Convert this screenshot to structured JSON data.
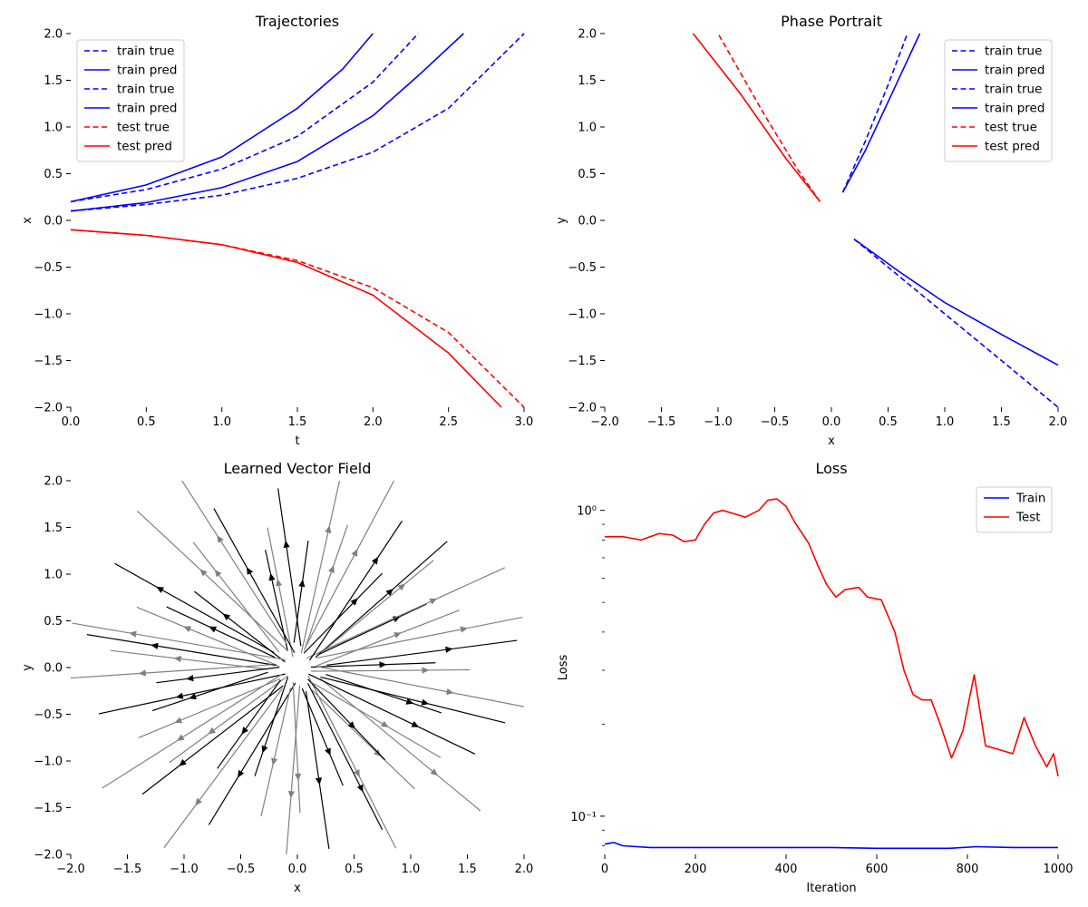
{
  "chart_data": [
    {
      "id": "trajectories",
      "type": "line",
      "title": "Trajectories",
      "xlabel": "t",
      "ylabel": "x",
      "xlim": [
        0,
        3
      ],
      "ylim": [
        -2,
        2
      ],
      "xticks": [
        "0.0",
        "0.5",
        "1.0",
        "1.5",
        "2.0",
        "2.5",
        "3.0"
      ],
      "yticks": [
        "-2.0",
        "-1.5",
        "-1.0",
        "-0.5",
        "0.0",
        "0.5",
        "1.0",
        "1.5",
        "2.0"
      ],
      "legend_position": "top-left",
      "series": [
        {
          "name": "train true",
          "color": "#0000ff",
          "dashed": true,
          "x": [
            0,
            0.5,
            1.0,
            1.5,
            2.0,
            2.3
          ],
          "y": [
            0.2,
            0.33,
            0.55,
            0.9,
            1.48,
            2.0
          ]
        },
        {
          "name": "train pred",
          "color": "#0000ff",
          "dashed": false,
          "x": [
            0,
            0.5,
            1.0,
            1.5,
            1.8,
            2.0
          ],
          "y": [
            0.2,
            0.38,
            0.68,
            1.2,
            1.62,
            2.0
          ]
        },
        {
          "name": "train true",
          "color": "#0000ff",
          "dashed": true,
          "x": [
            0,
            0.5,
            1.0,
            1.5,
            2.0,
            2.5,
            3.0
          ],
          "y": [
            0.1,
            0.17,
            0.27,
            0.45,
            0.73,
            1.2,
            2.0
          ]
        },
        {
          "name": "train pred",
          "color": "#0000ff",
          "dashed": false,
          "x": [
            0,
            0.5,
            1.0,
            1.5,
            2.0,
            2.3,
            2.6
          ],
          "y": [
            0.1,
            0.19,
            0.35,
            0.63,
            1.12,
            1.55,
            2.0
          ]
        },
        {
          "name": "test true",
          "color": "#ff0000",
          "dashed": true,
          "x": [
            0,
            0.5,
            1.0,
            1.5,
            2.0,
            2.5,
            3.0
          ],
          "y": [
            -0.1,
            -0.16,
            -0.26,
            -0.43,
            -0.72,
            -1.2,
            -2.0
          ]
        },
        {
          "name": "test pred",
          "color": "#ff0000",
          "dashed": false,
          "x": [
            0,
            0.5,
            1.0,
            1.5,
            2.0,
            2.5,
            2.85
          ],
          "y": [
            -0.1,
            -0.16,
            -0.26,
            -0.45,
            -0.8,
            -1.42,
            -2.0
          ]
        }
      ]
    },
    {
      "id": "phase",
      "type": "line",
      "title": "Phase Portrait",
      "xlabel": "x",
      "ylabel": "y",
      "xlim": [
        -2,
        2
      ],
      "ylim": [
        -2,
        2
      ],
      "xticks": [
        "-2.0",
        "-1.5",
        "-1.0",
        "-0.5",
        "0.0",
        "0.5",
        "1.0",
        "1.5",
        "2.0"
      ],
      "yticks": [
        "-2.0",
        "-1.5",
        "-1.0",
        "-0.5",
        "0.0",
        "0.5",
        "1.0",
        "1.5",
        "2.0"
      ],
      "legend_position": "top-right",
      "series": [
        {
          "name": "train true",
          "color": "#0000ff",
          "dashed": true,
          "x": [
            0.1,
            0.3,
            0.5,
            0.67
          ],
          "y": [
            0.3,
            0.85,
            1.45,
            2.0
          ]
        },
        {
          "name": "train pred",
          "color": "#0000ff",
          "dashed": false,
          "x": [
            0.1,
            0.3,
            0.55,
            0.78
          ],
          "y": [
            0.3,
            0.75,
            1.4,
            2.0
          ]
        },
        {
          "name": "train true",
          "color": "#0000ff",
          "dashed": true,
          "x": [
            0.2,
            0.6,
            1.0,
            1.5,
            2.0
          ],
          "y": [
            -0.2,
            -0.6,
            -1.0,
            -1.5,
            -2.0
          ]
        },
        {
          "name": "train pred",
          "color": "#0000ff",
          "dashed": false,
          "x": [
            0.2,
            0.6,
            1.0,
            1.5,
            2.0
          ],
          "y": [
            -0.2,
            -0.55,
            -0.88,
            -1.22,
            -1.55
          ]
        },
        {
          "name": "test true",
          "color": "#ff0000",
          "dashed": true,
          "x": [
            -0.1,
            -0.3,
            -0.6,
            -1.0
          ],
          "y": [
            0.2,
            0.55,
            1.15,
            2.0
          ]
        },
        {
          "name": "test pred",
          "color": "#ff0000",
          "dashed": false,
          "x": [
            -0.1,
            -0.4,
            -0.8,
            -1.22
          ],
          "y": [
            0.2,
            0.66,
            1.35,
            2.0
          ]
        }
      ]
    },
    {
      "id": "vector_field",
      "type": "streamplot",
      "title": "Learned Vector Field",
      "xlabel": "x",
      "ylabel": "y",
      "xlim": [
        -2,
        2
      ],
      "ylim": [
        -2,
        2
      ],
      "xticks": [
        "-2.0",
        "-1.5",
        "-1.0",
        "-0.5",
        "0.0",
        "0.5",
        "1.0",
        "1.5",
        "2.0"
      ],
      "yticks": [
        "-2.0",
        "-1.5",
        "-1.0",
        "-0.5",
        "0.0",
        "0.5",
        "1.0",
        "1.5",
        "2.0"
      ],
      "field": "radial outward from origin",
      "stream_colors": [
        "#000000",
        "#808080"
      ]
    },
    {
      "id": "loss",
      "type": "line",
      "title": "Loss",
      "xlabel": "Iteration",
      "ylabel": "Loss",
      "xlim": [
        0,
        1000
      ],
      "ylim": [
        0.075,
        1.25
      ],
      "yscale": "log",
      "xticks": [
        "0",
        "200",
        "400",
        "600",
        "800",
        "1000"
      ],
      "ytick_labels": [
        "10⁻¹",
        "10⁰"
      ],
      "legend_position": "top-right",
      "series": [
        {
          "name": "Train",
          "color": "#0000ff",
          "x": [
            0,
            20,
            40,
            100,
            200,
            300,
            400,
            500,
            600,
            700,
            760,
            820,
            900,
            1000
          ],
          "y": [
            0.081,
            0.082,
            0.08,
            0.079,
            0.079,
            0.079,
            0.079,
            0.079,
            0.0785,
            0.0785,
            0.0785,
            0.0795,
            0.079,
            0.079
          ]
        },
        {
          "name": "Test",
          "color": "#ff0000",
          "x": [
            0,
            20,
            40,
            60,
            80,
            100,
            120,
            150,
            175,
            200,
            220,
            240,
            260,
            290,
            310,
            340,
            360,
            380,
            400,
            420,
            450,
            470,
            490,
            510,
            530,
            560,
            580,
            610,
            640,
            660,
            680,
            700,
            720,
            740,
            765,
            790,
            815,
            840,
            870,
            900,
            925,
            950,
            975,
            990,
            1000
          ],
          "y": [
            0.82,
            0.82,
            0.82,
            0.81,
            0.8,
            0.82,
            0.84,
            0.83,
            0.79,
            0.8,
            0.9,
            0.98,
            1.0,
            0.97,
            0.95,
            1.0,
            1.08,
            1.09,
            1.03,
            0.91,
            0.78,
            0.66,
            0.57,
            0.52,
            0.55,
            0.56,
            0.52,
            0.51,
            0.4,
            0.3,
            0.25,
            0.24,
            0.24,
            0.2,
            0.155,
            0.19,
            0.29,
            0.17,
            0.165,
            0.16,
            0.21,
            0.17,
            0.145,
            0.16,
            0.135
          ]
        }
      ]
    }
  ]
}
